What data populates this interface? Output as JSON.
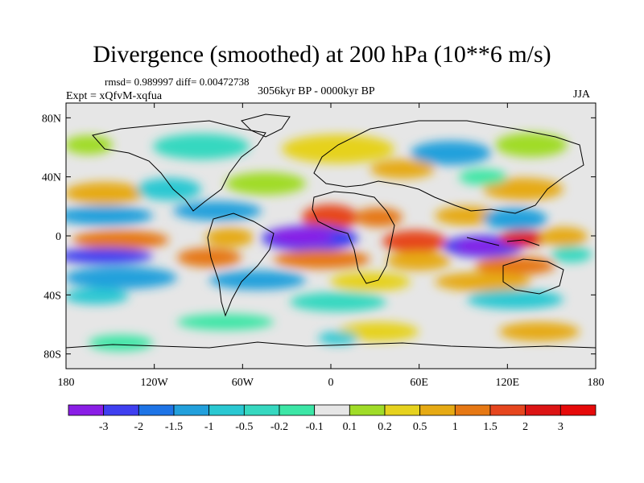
{
  "title": "Divergence (smoothed) at 200 hPa (10**6 m/s)",
  "stats": "rmsd= 0.989997 diff= 0.00472738",
  "period": "3056kyr BP - 0000kyr BP",
  "experiment": "Expt = xQfvM-xqfua",
  "season": "JJA",
  "axes": {
    "lon_ticks": [
      "180",
      "120W",
      "60W",
      "0",
      "60E",
      "120E",
      "180"
    ],
    "lat_ticks": [
      "80N",
      "40N",
      "0",
      "40S",
      "80S"
    ]
  },
  "colorbar": {
    "labels": [
      "-3",
      "-2",
      "-1.5",
      "-1",
      "-0.5",
      "-0.2",
      "-0.1",
      "0.1",
      "0.2",
      "0.5",
      "1",
      "1.5",
      "2",
      "3"
    ],
    "colors": [
      "#8a1ee6",
      "#3f3ff0",
      "#1e74e6",
      "#22a0dc",
      "#2ac8d2",
      "#36d8c0",
      "#3ce6a6",
      "#e6e6e6",
      "#a0dc28",
      "#e6d21e",
      "#e6aa14",
      "#e67814",
      "#e6461e",
      "#dc1414",
      "#e60a0a"
    ]
  }
}
